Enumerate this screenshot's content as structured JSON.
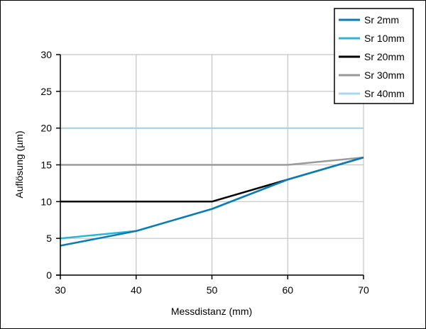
{
  "chart_data": {
    "type": "line",
    "xlabel": "Messdistanz (mm)",
    "ylabel": "Auflösung (µm)",
    "xlim": [
      30,
      70
    ],
    "ylim": [
      0,
      30
    ],
    "xticks": [
      30,
      40,
      50,
      60,
      70
    ],
    "yticks": [
      0,
      5,
      10,
      15,
      20,
      25,
      30
    ],
    "grid": true,
    "legend_position": "top-right",
    "series": [
      {
        "name": "Sr 2mm",
        "color": "#0a7bb5",
        "x": [
          30,
          40,
          50,
          60,
          70
        ],
        "y": [
          4,
          6,
          9,
          13,
          16
        ]
      },
      {
        "name": "Sr 10mm",
        "color": "#2ab7d7",
        "x": [
          30,
          40,
          50,
          60,
          70
        ],
        "y": [
          5,
          6,
          9,
          13,
          16
        ]
      },
      {
        "name": "Sr 20mm",
        "color": "#000000",
        "x": [
          30,
          40,
          50,
          60,
          70
        ],
        "y": [
          10,
          10,
          10,
          13,
          16
        ]
      },
      {
        "name": "Sr 30mm",
        "color": "#9a9a9a",
        "x": [
          30,
          40,
          50,
          60,
          70
        ],
        "y": [
          15,
          15,
          15,
          15,
          16
        ]
      },
      {
        "name": "Sr 40mm",
        "color": "#a9d9e8",
        "x": [
          30,
          40,
          50,
          60,
          70
        ],
        "y": [
          20,
          20,
          20,
          20,
          20
        ]
      }
    ]
  }
}
